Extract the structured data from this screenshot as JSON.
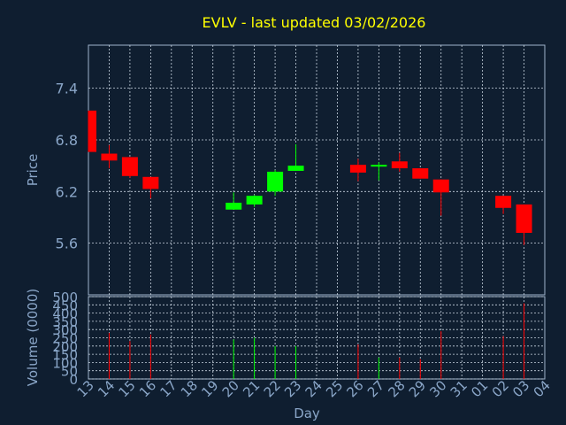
{
  "title": "EVLV - last updated 03/02/2026",
  "colors": {
    "background": "#0f1e30",
    "title": "#ffff00",
    "axis_text": "#8aa6c8",
    "frame": "#9fb4cc",
    "grid": "#c8d4e0",
    "up": "#00ff00",
    "down": "#ff0000"
  },
  "chart_data": [
    {
      "type": "candlestick",
      "ylabel": "Price",
      "ylim": [
        5.0,
        7.9
      ],
      "yticks": [
        5.6,
        6.2,
        6.8,
        7.4
      ],
      "ytick_labels": [
        "5.6",
        "6.2",
        "6.8",
        "7.4"
      ],
      "grid": true,
      "candles": [
        {
          "day": "13",
          "open": 7.14,
          "high": 7.14,
          "low": 6.66,
          "close": 6.66
        },
        {
          "day": "14",
          "open": 6.64,
          "high": 6.74,
          "low": 6.47,
          "close": 6.56
        },
        {
          "day": "15",
          "open": 6.6,
          "high": 6.6,
          "low": 6.36,
          "close": 6.38
        },
        {
          "day": "16",
          "open": 6.37,
          "high": 6.37,
          "low": 6.12,
          "close": 6.23
        },
        {
          "day": "20",
          "open": 5.99,
          "high": 6.19,
          "low": 5.99,
          "close": 6.07
        },
        {
          "day": "21",
          "open": 6.05,
          "high": 6.16,
          "low": 6.02,
          "close": 6.15
        },
        {
          "day": "22",
          "open": 6.2,
          "high": 6.45,
          "low": 6.15,
          "close": 6.43
        },
        {
          "day": "23",
          "open": 6.44,
          "high": 6.75,
          "low": 6.44,
          "close": 6.5
        },
        {
          "day": "26",
          "open": 6.51,
          "high": 6.58,
          "low": 6.32,
          "close": 6.42
        },
        {
          "day": "27",
          "open": 6.49,
          "high": 6.54,
          "low": 6.33,
          "close": 6.51
        },
        {
          "day": "28",
          "open": 6.55,
          "high": 6.65,
          "low": 6.43,
          "close": 6.47
        },
        {
          "day": "29",
          "open": 6.47,
          "high": 6.47,
          "low": 6.35,
          "close": 6.35
        },
        {
          "day": "30",
          "open": 6.34,
          "high": 6.34,
          "low": 5.92,
          "close": 6.19
        },
        {
          "day": "02",
          "open": 6.15,
          "high": 6.15,
          "low": 5.94,
          "close": 6.01
        },
        {
          "day": "03",
          "open": 6.05,
          "high": 6.05,
          "low": 5.58,
          "close": 5.72
        }
      ]
    },
    {
      "type": "bar",
      "ylabel": "Volume (0000)",
      "xlabel": "Day",
      "ylim": [
        0,
        500
      ],
      "yticks": [
        0,
        50,
        100,
        150,
        200,
        250,
        300,
        350,
        400,
        450,
        500
      ],
      "ytick_labels": [
        "0",
        "50",
        "100",
        "150",
        "200",
        "250",
        "300",
        "350",
        "400",
        "450",
        "500"
      ],
      "grid": true,
      "x_labels": [
        "13",
        "14",
        "15",
        "16",
        "17",
        "18",
        "19",
        "20",
        "21",
        "22",
        "23",
        "24",
        "25",
        "26",
        "27",
        "28",
        "29",
        "30",
        "31",
        "01",
        "02",
        "03",
        "04"
      ],
      "volumes": [
        {
          "day": "14",
          "value": 280,
          "direction": "down"
        },
        {
          "day": "15",
          "value": 230,
          "direction": "down"
        },
        {
          "day": "16",
          "value": 270,
          "direction": "down"
        },
        {
          "day": "20",
          "value": 240,
          "direction": "up"
        },
        {
          "day": "21",
          "value": 250,
          "direction": "up"
        },
        {
          "day": "22",
          "value": 200,
          "direction": "up"
        },
        {
          "day": "23",
          "value": 200,
          "direction": "up"
        },
        {
          "day": "26",
          "value": 210,
          "direction": "down"
        },
        {
          "day": "27",
          "value": 130,
          "direction": "up"
        },
        {
          "day": "28",
          "value": 130,
          "direction": "down"
        },
        {
          "day": "29",
          "value": 120,
          "direction": "down"
        },
        {
          "day": "30",
          "value": 290,
          "direction": "down"
        },
        {
          "day": "02",
          "value": 260,
          "direction": "down"
        },
        {
          "day": "03",
          "value": 460,
          "direction": "down"
        }
      ]
    }
  ]
}
